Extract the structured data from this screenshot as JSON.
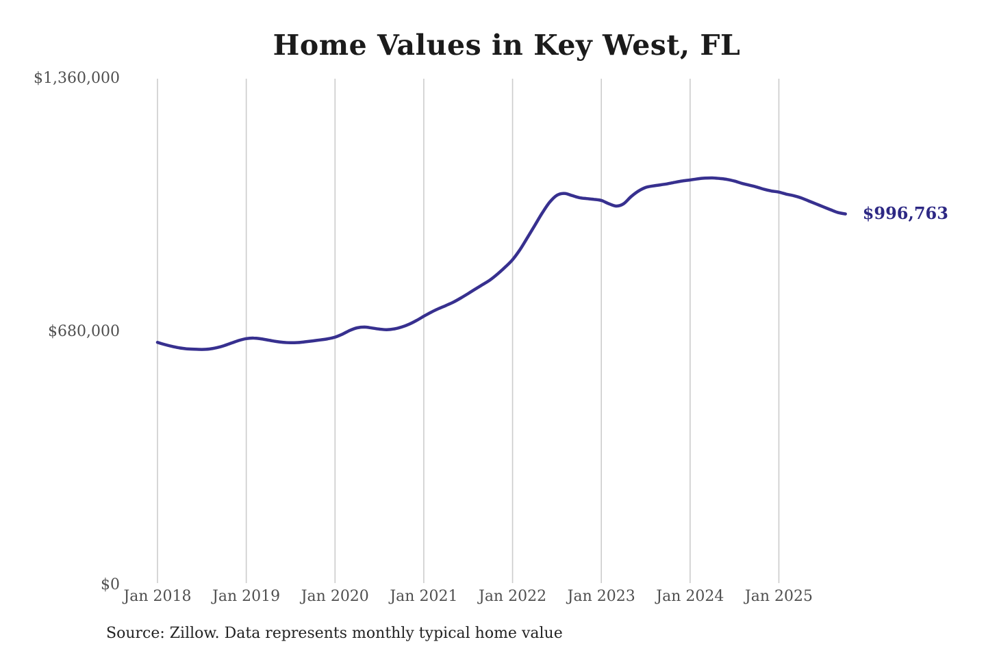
{
  "chart": {
    "title": "Home Values in Key West, FL",
    "source": "Source: Zillow. Data represents monthly typical home value",
    "end_label": "$996,763",
    "colors": {
      "line": "#37308f",
      "end_label": "#2d2884",
      "gridline": "#cccccc",
      "axis_text": "#4f4f4f",
      "title_text": "#1b1b1b"
    }
  },
  "chart_data": {
    "type": "line",
    "title": "Home Values in Key West, FL",
    "xlabel": "",
    "ylabel": "",
    "ylim": [
      0,
      1360000
    ],
    "grid": "vertical-only",
    "legend": "none",
    "y_ticks": [
      {
        "label": "$1,360,000",
        "value": 1360000
      },
      {
        "label": "$680,000",
        "value": 680000
      },
      {
        "label": "$0",
        "value": 0
      }
    ],
    "x_ticks": [
      {
        "label": "Jan 2018",
        "month_index": 0
      },
      {
        "label": "Jan 2019",
        "month_index": 12
      },
      {
        "label": "Jan 2020",
        "month_index": 24
      },
      {
        "label": "Jan 2021",
        "month_index": 36
      },
      {
        "label": "Jan 2022",
        "month_index": 48
      },
      {
        "label": "Jan 2023",
        "month_index": 60
      },
      {
        "label": "Jan 2024",
        "month_index": 72
      },
      {
        "label": "Jan 2025",
        "month_index": 84
      }
    ],
    "series": [
      {
        "name": "Typical home value",
        "start_month": "2018-01",
        "end_month": "2025-10",
        "cadence": "monthly",
        "values": [
          652000,
          646000,
          641000,
          637000,
          634500,
          633500,
          633000,
          634000,
          637500,
          643000,
          650000,
          657000,
          662000,
          663500,
          661500,
          658000,
          654500,
          652000,
          651000,
          651500,
          653500,
          656000,
          658500,
          661500,
          666000,
          674000,
          684000,
          691000,
          693000,
          690500,
          687500,
          686000,
          688000,
          693000,
          700500,
          710500,
          722000,
          733000,
          742500,
          751000,
          760000,
          771000,
          783000,
          795500,
          807500,
          820000,
          836000,
          854000,
          874000,
          901000,
          933000,
          966000,
          999000,
          1028000,
          1047000,
          1052000,
          1046500,
          1040500,
          1038000,
          1036000,
          1033000,
          1024500,
          1018000,
          1024000,
          1043000,
          1058000,
          1068000,
          1072000,
          1075000,
          1078000,
          1082000,
          1085500,
          1088000,
          1091000,
          1093000,
          1093500,
          1092000,
          1089500,
          1085000,
          1079000,
          1074000,
          1069000,
          1063000,
          1058500,
          1055500,
          1050000,
          1046000,
          1040000,
          1032000,
          1024000,
          1016000,
          1008000,
          1000500,
          996763
        ]
      }
    ],
    "latest_value": 996763,
    "annotations": [
      {
        "text": "$996,763",
        "attached_to": "last-point"
      }
    ]
  }
}
